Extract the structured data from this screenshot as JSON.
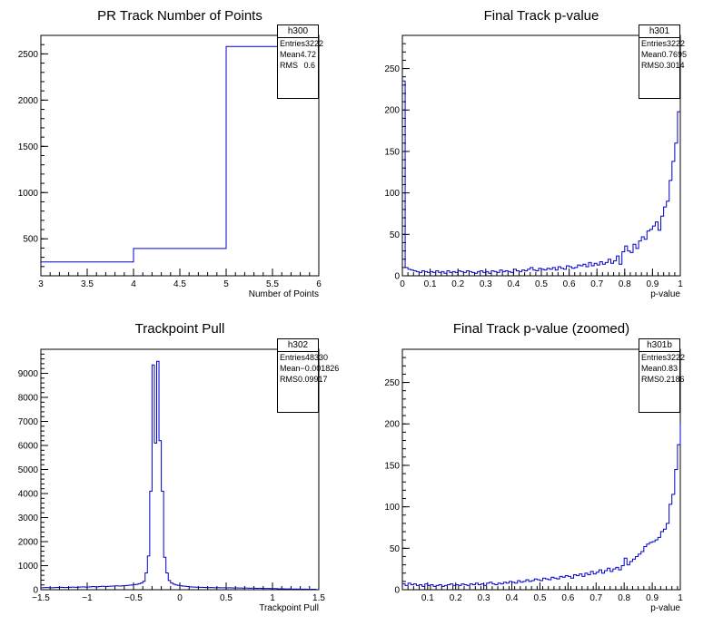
{
  "chart_data": [
    {
      "id": "h300",
      "type": "histogram",
      "title": "PR Track Number of Points",
      "xlabel": "Number of Points",
      "ylabel": "",
      "xlim": [
        3,
        6
      ],
      "ylim": [
        100,
        2700
      ],
      "xticks": [
        3,
        3.5,
        4,
        4.5,
        5,
        5.5,
        6
      ],
      "xtick_labels": [
        "3",
        "3.5",
        "4",
        "4.5",
        "5",
        "5.5",
        "6"
      ],
      "yticks": [
        500,
        1000,
        1500,
        2000,
        2500
      ],
      "ytick_labels": [
        "500",
        "1000",
        "1500",
        "2000",
        "2500"
      ],
      "bins": [
        3,
        4,
        5,
        6
      ],
      "values": [
        250,
        395,
        2580
      ],
      "stats": {
        "name": "h300",
        "rows": [
          [
            "Entries",
            "3222"
          ],
          [
            "Mean",
            "4.72"
          ],
          [
            "RMS",
            "0.6"
          ]
        ]
      },
      "color": "#0000cc"
    },
    {
      "id": "h301",
      "type": "histogram",
      "title": "Final Track p-value",
      "xlabel": "p-value",
      "ylabel": "",
      "xlim": [
        0,
        1
      ],
      "ylim": [
        0,
        290
      ],
      "xticks": [
        0,
        0.1,
        0.2,
        0.3,
        0.4,
        0.5,
        0.6,
        0.7,
        0.8,
        0.9,
        1
      ],
      "xtick_labels": [
        "0",
        "0.1",
        "0.2",
        "0.3",
        "0.4",
        "0.5",
        "0.6",
        "0.7",
        "0.8",
        "0.9",
        "1"
      ],
      "yticks": [
        0,
        50,
        100,
        150,
        200,
        250
      ],
      "ytick_labels": [
        "0",
        "50",
        "100",
        "150",
        "200",
        "250"
      ],
      "bin_start": 0,
      "bin_width": 0.01,
      "values": [
        235,
        10,
        8,
        7,
        6,
        5,
        4,
        6,
        5,
        4,
        5,
        4,
        6,
        4,
        5,
        3,
        6,
        4,
        5,
        4,
        6,
        5,
        4,
        6,
        5,
        4,
        3,
        5,
        6,
        4,
        5,
        3,
        6,
        5,
        4,
        7,
        5,
        6,
        5,
        4,
        8,
        6,
        5,
        7,
        6,
        8,
        10,
        7,
        6,
        9,
        8,
        7,
        9,
        8,
        10,
        7,
        11,
        9,
        8,
        12,
        11,
        9,
        10,
        13,
        12,
        14,
        11,
        16,
        12,
        15,
        13,
        17,
        14,
        16,
        20,
        15,
        18,
        24,
        14,
        29,
        36,
        30,
        28,
        38,
        33,
        42,
        47,
        44,
        54,
        56,
        60,
        65,
        55,
        72,
        83,
        90,
        115,
        138,
        160,
        198
      ],
      "stats": {
        "name": "h301",
        "rows": [
          [
            "Entries",
            "3222"
          ],
          [
            "Mean",
            "0.7695"
          ],
          [
            "RMS",
            "0.3014"
          ]
        ]
      },
      "color": "#0000cc"
    },
    {
      "id": "h302",
      "type": "histogram",
      "title": "Trackpoint Pull",
      "xlabel": "Trackpoint Pull",
      "ylabel": "",
      "xlim": [
        -1.5,
        1.5
      ],
      "ylim": [
        0,
        10000
      ],
      "xticks": [
        -1.5,
        -1,
        -0.5,
        0,
        0.5,
        1,
        1.5
      ],
      "xtick_labels": [
        "−1.5",
        "−1",
        "−0.5",
        "0",
        "0.5",
        "1",
        "1.5"
      ],
      "yticks": [
        0,
        1000,
        2000,
        3000,
        4000,
        5000,
        6000,
        7000,
        8000,
        9000
      ],
      "ytick_labels": [
        "0",
        "1000",
        "2000",
        "3000",
        "4000",
        "5000",
        "6000",
        "7000",
        "8000",
        "9000"
      ],
      "bin_start": -1.5,
      "bin_width": 0.025,
      "values": [
        80,
        85,
        90,
        85,
        80,
        85,
        90,
        95,
        100,
        95,
        90,
        95,
        100,
        110,
        105,
        100,
        110,
        115,
        120,
        110,
        115,
        120,
        130,
        125,
        120,
        130,
        140,
        135,
        130,
        140,
        145,
        150,
        160,
        155,
        150,
        165,
        170,
        180,
        190,
        200,
        210,
        220,
        250,
        280,
        350,
        700,
        1400,
        4100,
        9350,
        6100,
        9500,
        6200,
        4100,
        1350,
        700,
        380,
        280,
        230,
        200,
        180,
        165,
        150,
        140,
        130,
        120,
        115,
        110,
        105,
        100,
        100,
        95,
        90,
        85,
        90,
        85,
        80,
        85,
        80,
        80,
        80,
        75,
        80,
        75,
        70,
        75,
        70,
        70,
        65,
        70,
        65,
        60,
        65,
        60,
        55,
        60,
        55,
        50,
        50,
        50,
        45,
        45,
        45,
        40,
        40,
        40,
        35,
        35,
        35,
        30,
        30,
        30,
        30,
        25,
        25,
        25,
        20,
        20,
        20,
        20
      ],
      "stats": {
        "name": "h302",
        "rows": [
          [
            "Entries",
            "48330"
          ],
          [
            "Mean",
            "−0.001826"
          ],
          [
            "RMS",
            "0.09917"
          ]
        ]
      },
      "color": "#0000cc"
    },
    {
      "id": "h301b",
      "type": "histogram",
      "title": "Final Track p-value (zoomed)",
      "xlabel": "p-value",
      "ylabel": "",
      "xlim": [
        0.01,
        1
      ],
      "ylim": [
        0,
        290
      ],
      "xticks": [
        0.1,
        0.2,
        0.3,
        0.4,
        0.5,
        0.6,
        0.7,
        0.8,
        0.9,
        1
      ],
      "xtick_labels": [
        "0.1",
        "0.2",
        "0.3",
        "0.4",
        "0.5",
        "0.6",
        "0.7",
        "0.8",
        "0.9",
        "1"
      ],
      "yticks": [
        0,
        50,
        100,
        150,
        200,
        250
      ],
      "ytick_labels": [
        "0",
        "50",
        "100",
        "150",
        "200",
        "250"
      ],
      "bin_start": 0.01,
      "bin_width": 0.01,
      "values": [
        7,
        5,
        8,
        6,
        7,
        5,
        6,
        4,
        7,
        5,
        6,
        4,
        5,
        6,
        4,
        5,
        6,
        7,
        5,
        6,
        5,
        7,
        6,
        5,
        7,
        6,
        8,
        6,
        7,
        5,
        8,
        9,
        7,
        6,
        8,
        7,
        9,
        8,
        10,
        9,
        8,
        11,
        9,
        10,
        12,
        10,
        11,
        13,
        12,
        11,
        14,
        13,
        12,
        15,
        14,
        13,
        16,
        15,
        17,
        16,
        14,
        18,
        17,
        19,
        16,
        20,
        18,
        22,
        19,
        21,
        24,
        20,
        23,
        26,
        22,
        25,
        27,
        24,
        29,
        38,
        30,
        34,
        37,
        40,
        43,
        46,
        52,
        55,
        57,
        58,
        60,
        63,
        70,
        73,
        80,
        103,
        115,
        145,
        175,
        200
      ],
      "stats": {
        "name": "h301b",
        "rows": [
          [
            "Entries",
            "3222"
          ],
          [
            "Mean",
            "0.83"
          ],
          [
            "RMS",
            "0.2186"
          ]
        ]
      },
      "color": "#0000cc"
    }
  ]
}
